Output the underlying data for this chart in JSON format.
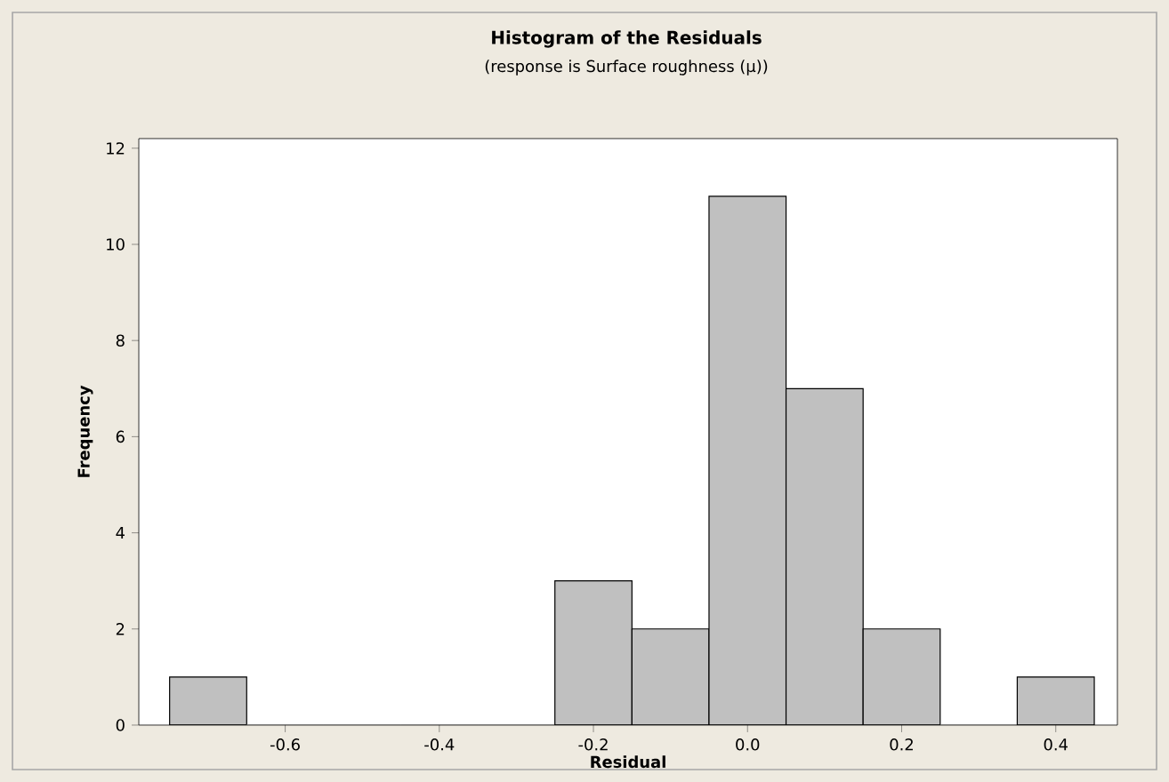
{
  "chart_data": {
    "type": "histogram",
    "title": "Histogram of the Residuals",
    "subtitle": "(response is Surface roughness (μ))",
    "xlabel": "Residual",
    "ylabel": "Frequency",
    "bins": [
      -0.75,
      -0.65,
      -0.55,
      -0.45,
      -0.35,
      -0.25,
      -0.15,
      -0.05,
      0.05,
      0.15,
      0.25,
      0.35,
      0.45
    ],
    "values": [
      1,
      0,
      0,
      0,
      0,
      3,
      2,
      11,
      7,
      2,
      0,
      1
    ],
    "color": "#c0c0c0",
    "xlim": [
      -0.79,
      0.48
    ],
    "ylim": [
      0,
      12.2
    ],
    "xticks": [
      {
        "value": -0.6,
        "label": "-0.6"
      },
      {
        "value": -0.4,
        "label": "-0.4"
      },
      {
        "value": -0.2,
        "label": "-0.2"
      },
      {
        "value": 0,
        "label": "0.0"
      },
      {
        "value": 0.2,
        "label": "0.2"
      },
      {
        "value": 0.4,
        "label": "0.4"
      }
    ],
    "yticks": [
      0,
      2,
      4,
      6,
      8,
      10,
      12
    ],
    "grid": false
  }
}
